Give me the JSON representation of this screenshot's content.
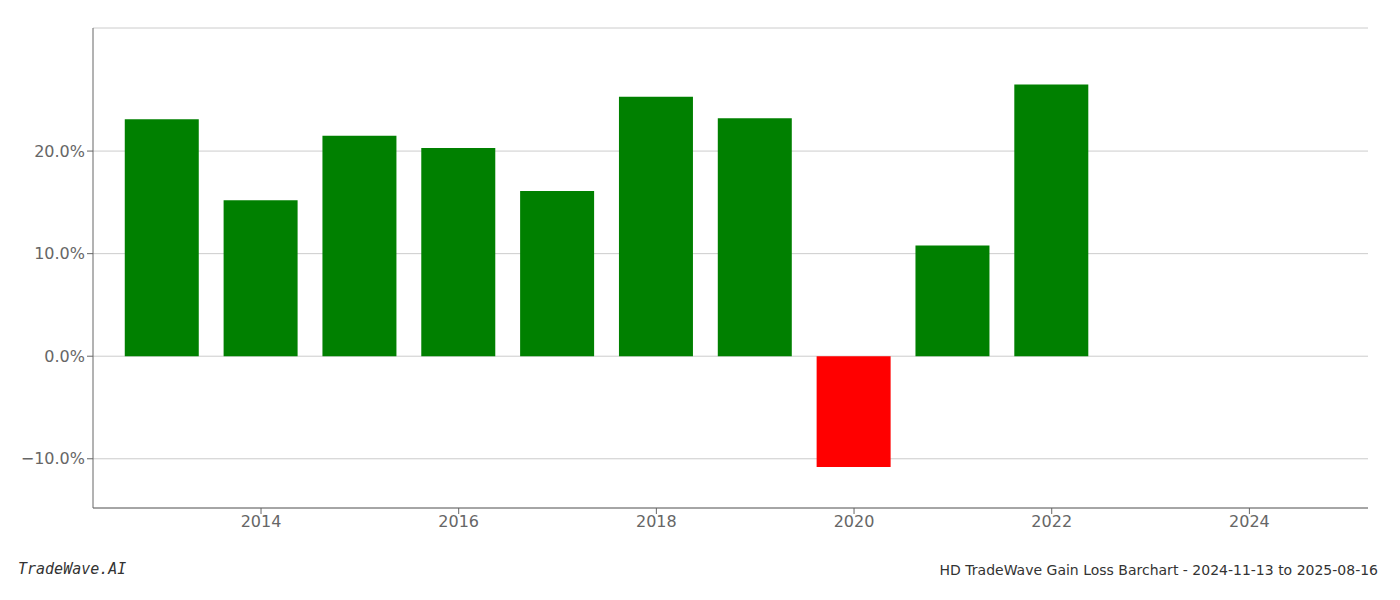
{
  "chart_data": {
    "type": "bar",
    "title": "HD TradeWave Gain Loss Barchart - 2024-11-13 to 2025-08-16",
    "annotations": [
      "TradeWave.AI"
    ],
    "x": [
      2013,
      2014,
      2015,
      2016,
      2017,
      2018,
      2019,
      2020,
      2021,
      2022
    ],
    "values": [
      0.231,
      0.152,
      0.215,
      0.203,
      0.161,
      0.253,
      0.232,
      -0.108,
      0.108,
      0.265
    ],
    "colors": [
      "#008000",
      "#008000",
      "#008000",
      "#008000",
      "#008000",
      "#008000",
      "#008000",
      "#ff0000",
      "#008000",
      "#008000"
    ],
    "xlim": [
      2012.3,
      2025.2
    ],
    "xticks": [
      2014,
      2016,
      2018,
      2020,
      2022,
      2024
    ],
    "ylim": [
      -0.148,
      0.32
    ],
    "yticks": [
      {
        "value": -0.1,
        "label": "−10.0%"
      },
      {
        "value": 0.0,
        "label": "0.0%"
      },
      {
        "value": 0.1,
        "label": "10.0%"
      },
      {
        "value": 0.2,
        "label": "20.0%"
      }
    ],
    "grid": true
  }
}
